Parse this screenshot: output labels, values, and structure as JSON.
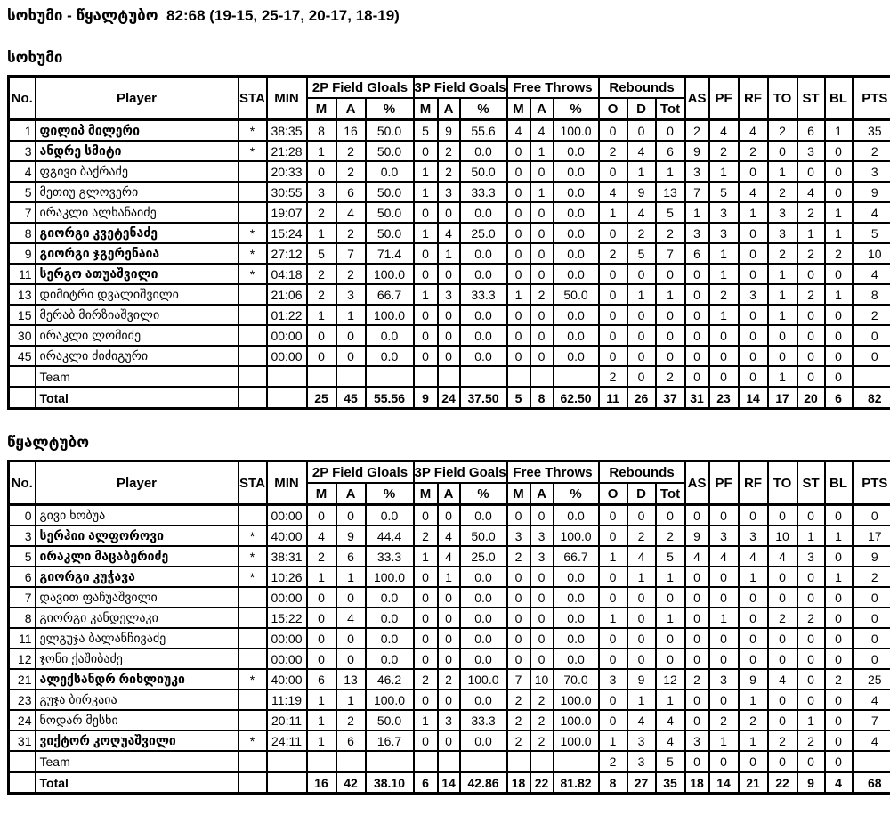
{
  "page": {
    "title": "სოხუმი - წყალტუბო  82:68 (19-15, 25-17, 20-17, 18-19)"
  },
  "table": {
    "headers": {
      "no": "No.",
      "player": "Player",
      "sta": "STA",
      "min": "MIN",
      "fg2": "2P Field Gloals",
      "fg3": "3P Field Goals",
      "ft": "Free Throws",
      "reb": "Rebounds",
      "made": "M",
      "att": "A",
      "pct": "%",
      "reb_off": "O",
      "reb_def": "D",
      "reb_tot": "Tot",
      "as": "AS",
      "pf": "PF",
      "rf": "RF",
      "to": "TO",
      "st": "ST",
      "bl": "BL",
      "pts": "PTS"
    }
  },
  "teams": [
    {
      "name": "სოხუმი",
      "players": [
        {
          "no": "1",
          "player": "ფილიპ მილერი",
          "sta": "*",
          "min": "38:35",
          "cells": [
            "8",
            "16",
            "50.0",
            "5",
            "9",
            "55.6",
            "4",
            "4",
            "100.0",
            "0",
            "0",
            "0",
            "2",
            "4",
            "4",
            "2",
            "6",
            "1",
            "35"
          ]
        },
        {
          "no": "3",
          "player": "ანდრე სმიტი",
          "sta": "*",
          "min": "21:28",
          "cells": [
            "1",
            "2",
            "50.0",
            "0",
            "2",
            "0.0",
            "0",
            "1",
            "0.0",
            "2",
            "4",
            "6",
            "9",
            "2",
            "2",
            "0",
            "3",
            "0",
            "2"
          ]
        },
        {
          "no": "4",
          "player": "ფგივი ბაქრაძე",
          "sta": "",
          "min": "20:33",
          "cells": [
            "0",
            "2",
            "0.0",
            "1",
            "2",
            "50.0",
            "0",
            "0",
            "0.0",
            "0",
            "1",
            "1",
            "3",
            "1",
            "0",
            "1",
            "0",
            "0",
            "3"
          ]
        },
        {
          "no": "5",
          "player": "მეთიუ გლოვერი",
          "sta": "",
          "min": "30:55",
          "cells": [
            "3",
            "6",
            "50.0",
            "1",
            "3",
            "33.3",
            "0",
            "1",
            "0.0",
            "4",
            "9",
            "13",
            "7",
            "5",
            "4",
            "2",
            "4",
            "0",
            "9"
          ]
        },
        {
          "no": "7",
          "player": "ირაკლი ალხანაიძე",
          "sta": "",
          "min": "19:07",
          "cells": [
            "2",
            "4",
            "50.0",
            "0",
            "0",
            "0.0",
            "0",
            "0",
            "0.0",
            "1",
            "4",
            "5",
            "1",
            "3",
            "1",
            "3",
            "2",
            "1",
            "4"
          ]
        },
        {
          "no": "8",
          "player": "გიორგი კვეტენაძე",
          "sta": "*",
          "min": "15:24",
          "cells": [
            "1",
            "2",
            "50.0",
            "1",
            "4",
            "25.0",
            "0",
            "0",
            "0.0",
            "0",
            "2",
            "2",
            "3",
            "3",
            "0",
            "3",
            "1",
            "1",
            "5"
          ]
        },
        {
          "no": "9",
          "player": "გიორგი ჯგერენაია",
          "sta": "*",
          "min": "27:12",
          "cells": [
            "5",
            "7",
            "71.4",
            "0",
            "1",
            "0.0",
            "0",
            "0",
            "0.0",
            "2",
            "5",
            "7",
            "6",
            "1",
            "0",
            "2",
            "2",
            "2",
            "10"
          ]
        },
        {
          "no": "11",
          "player": "სერგო ათუაშვილი",
          "sta": "*",
          "min": "04:18",
          "cells": [
            "2",
            "2",
            "100.0",
            "0",
            "0",
            "0.0",
            "0",
            "0",
            "0.0",
            "0",
            "0",
            "0",
            "0",
            "1",
            "0",
            "1",
            "0",
            "0",
            "4"
          ]
        },
        {
          "no": "13",
          "player": "დიმიტრი დვალიშვილი",
          "sta": "",
          "min": "21:06",
          "cells": [
            "2",
            "3",
            "66.7",
            "1",
            "3",
            "33.3",
            "1",
            "2",
            "50.0",
            "0",
            "1",
            "1",
            "0",
            "2",
            "3",
            "1",
            "2",
            "1",
            "8"
          ]
        },
        {
          "no": "15",
          "player": "მერაბ მირზიაშვილი",
          "sta": "",
          "min": "01:22",
          "cells": [
            "1",
            "1",
            "100.0",
            "0",
            "0",
            "0.0",
            "0",
            "0",
            "0.0",
            "0",
            "0",
            "0",
            "0",
            "1",
            "0",
            "1",
            "0",
            "0",
            "2"
          ]
        },
        {
          "no": "30",
          "player": "ირაკლი ლომიძე",
          "sta": "",
          "min": "00:00",
          "cells": [
            "0",
            "0",
            "0.0",
            "0",
            "0",
            "0.0",
            "0",
            "0",
            "0.0",
            "0",
            "0",
            "0",
            "0",
            "0",
            "0",
            "0",
            "0",
            "0",
            "0"
          ]
        },
        {
          "no": "45",
          "player": "ირაკლი ძიძიგური",
          "sta": "",
          "min": "00:00",
          "cells": [
            "0",
            "0",
            "0.0",
            "0",
            "0",
            "0.0",
            "0",
            "0",
            "0.0",
            "0",
            "0",
            "0",
            "0",
            "0",
            "0",
            "0",
            "0",
            "0",
            "0"
          ]
        }
      ],
      "team_row": {
        "label": "Team",
        "cells": [
          "",
          "",
          "",
          "",
          "",
          "",
          "",
          "",
          "",
          "2",
          "0",
          "2",
          "0",
          "0",
          "0",
          "1",
          "0",
          "0",
          ""
        ]
      },
      "total_row": {
        "label": "Total",
        "cells": [
          "25",
          "45",
          "55.56",
          "9",
          "24",
          "37.50",
          "5",
          "8",
          "62.50",
          "11",
          "26",
          "37",
          "31",
          "23",
          "14",
          "17",
          "20",
          "6",
          "82"
        ]
      }
    },
    {
      "name": "წყალტუბო",
      "players": [
        {
          "no": "0",
          "player": "გივი ხობუა",
          "sta": "",
          "min": "00:00",
          "cells": [
            "0",
            "0",
            "0.0",
            "0",
            "0",
            "0.0",
            "0",
            "0",
            "0.0",
            "0",
            "0",
            "0",
            "0",
            "0",
            "0",
            "0",
            "0",
            "0",
            "0"
          ]
        },
        {
          "no": "3",
          "player": "სერჰიი ალფოროვი",
          "sta": "*",
          "min": "40:00",
          "cells": [
            "4",
            "9",
            "44.4",
            "2",
            "4",
            "50.0",
            "3",
            "3",
            "100.0",
            "0",
            "2",
            "2",
            "9",
            "3",
            "3",
            "10",
            "1",
            "1",
            "17"
          ]
        },
        {
          "no": "5",
          "player": "ირაკლი მაცაბერიძე",
          "sta": "*",
          "min": "38:31",
          "cells": [
            "2",
            "6",
            "33.3",
            "1",
            "4",
            "25.0",
            "2",
            "3",
            "66.7",
            "1",
            "4",
            "5",
            "4",
            "4",
            "4",
            "4",
            "3",
            "0",
            "9"
          ]
        },
        {
          "no": "6",
          "player": "გიორგი კუჭავა",
          "sta": "*",
          "min": "10:26",
          "cells": [
            "1",
            "1",
            "100.0",
            "0",
            "1",
            "0.0",
            "0",
            "0",
            "0.0",
            "0",
            "1",
            "1",
            "0",
            "0",
            "1",
            "0",
            "0",
            "1",
            "2"
          ]
        },
        {
          "no": "7",
          "player": "დავით ფაჩუაშვილი",
          "sta": "",
          "min": "00:00",
          "cells": [
            "0",
            "0",
            "0.0",
            "0",
            "0",
            "0.0",
            "0",
            "0",
            "0.0",
            "0",
            "0",
            "0",
            "0",
            "0",
            "0",
            "0",
            "0",
            "0",
            "0"
          ]
        },
        {
          "no": "8",
          "player": "გიორგი კანდელაკი",
          "sta": "",
          "min": "15:22",
          "cells": [
            "0",
            "4",
            "0.0",
            "0",
            "0",
            "0.0",
            "0",
            "0",
            "0.0",
            "1",
            "0",
            "1",
            "0",
            "1",
            "0",
            "2",
            "2",
            "0",
            "0"
          ]
        },
        {
          "no": "11",
          "player": "ელგუჯა ბალანჩივაძე",
          "sta": "",
          "min": "00:00",
          "cells": [
            "0",
            "0",
            "0.0",
            "0",
            "0",
            "0.0",
            "0",
            "0",
            "0.0",
            "0",
            "0",
            "0",
            "0",
            "0",
            "0",
            "0",
            "0",
            "0",
            "0"
          ]
        },
        {
          "no": "12",
          "player": "ჯონი ქაშიბაძე",
          "sta": "",
          "min": "00:00",
          "cells": [
            "0",
            "0",
            "0.0",
            "0",
            "0",
            "0.0",
            "0",
            "0",
            "0.0",
            "0",
            "0",
            "0",
            "0",
            "0",
            "0",
            "0",
            "0",
            "0",
            "0"
          ]
        },
        {
          "no": "21",
          "player": "ალექსანდრ რიხლიუკი",
          "sta": "*",
          "min": "40:00",
          "cells": [
            "6",
            "13",
            "46.2",
            "2",
            "2",
            "100.0",
            "7",
            "10",
            "70.0",
            "3",
            "9",
            "12",
            "2",
            "3",
            "9",
            "4",
            "0",
            "2",
            "25"
          ]
        },
        {
          "no": "23",
          "player": "გუჯა ბირკაია",
          "sta": "",
          "min": "11:19",
          "cells": [
            "1",
            "1",
            "100.0",
            "0",
            "0",
            "0.0",
            "2",
            "2",
            "100.0",
            "0",
            "1",
            "1",
            "0",
            "0",
            "1",
            "0",
            "0",
            "0",
            "4"
          ]
        },
        {
          "no": "24",
          "player": "ნოდარ მესხი",
          "sta": "",
          "min": "20:11",
          "cells": [
            "1",
            "2",
            "50.0",
            "1",
            "3",
            "33.3",
            "2",
            "2",
            "100.0",
            "0",
            "4",
            "4",
            "0",
            "2",
            "2",
            "0",
            "1",
            "0",
            "7"
          ]
        },
        {
          "no": "31",
          "player": "ვიქტორ კოღუაშვილი",
          "sta": "*",
          "min": "24:11",
          "cells": [
            "1",
            "6",
            "16.7",
            "0",
            "0",
            "0.0",
            "2",
            "2",
            "100.0",
            "1",
            "3",
            "4",
            "3",
            "1",
            "1",
            "2",
            "2",
            "0",
            "4"
          ]
        }
      ],
      "team_row": {
        "label": "Team",
        "cells": [
          "",
          "",
          "",
          "",
          "",
          "",
          "",
          "",
          "",
          "2",
          "3",
          "5",
          "0",
          "0",
          "0",
          "0",
          "0",
          "0",
          ""
        ]
      },
      "total_row": {
        "label": "Total",
        "cells": [
          "16",
          "42",
          "38.10",
          "6",
          "14",
          "42.86",
          "18",
          "22",
          "81.82",
          "8",
          "27",
          "35",
          "18",
          "14",
          "21",
          "22",
          "9",
          "4",
          "68"
        ]
      }
    }
  ]
}
